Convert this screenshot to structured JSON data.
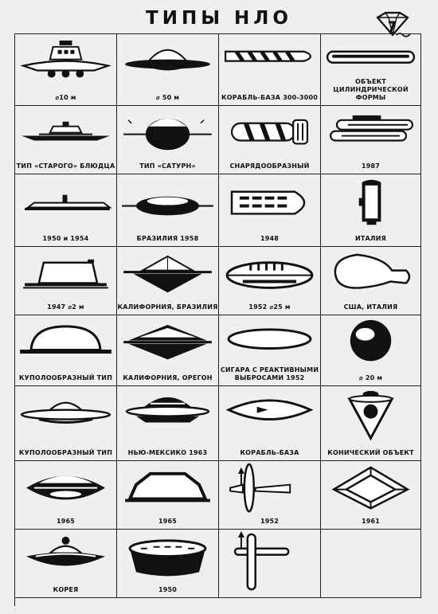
{
  "title": "ТИПЫ НЛО",
  "cells": [
    {
      "label": "⌀10 м",
      "icon": "saucer-cabin-icon"
    },
    {
      "label": "⌀ 50 м",
      "icon": "saucer-dome-icon"
    },
    {
      "label": "КОРАБЛЬ-БАЗА 300-3000",
      "icon": "cigar-segmented-icon"
    },
    {
      "label": "ОБЪЕКТ\nЦИЛИНДРИЧЕСКОЙ ФОРМЫ",
      "icon": "cylinder-icon"
    },
    {
      "label": "ТИП «СТАРОГО» БЛЮДЦА",
      "icon": "old-saucer-icon"
    },
    {
      "label": "ТИП «САТУРН»",
      "icon": "saturn-icon"
    },
    {
      "label": "СНАРЯДООБРАЗНЫЙ",
      "icon": "projectile-icon"
    },
    {
      "label": "1987",
      "icon": "double-cylinder-icon"
    },
    {
      "label": "1950 и 1954",
      "icon": "flat-plate-icon"
    },
    {
      "label": "БРАЗИЛИЯ 1958",
      "icon": "lens-ring-icon"
    },
    {
      "label": "1948",
      "icon": "boat-windows-icon"
    },
    {
      "label": "ИТАЛИЯ",
      "icon": "tower-icon"
    },
    {
      "label": "1947  ⌀2 м",
      "icon": "trapezoid-dome-icon"
    },
    {
      "label": "КАЛИФОРНИЯ, БРАЗИЛИЯ",
      "icon": "cone-ring-icon"
    },
    {
      "label": "1952  ⌀25 м",
      "icon": "lens-windows-icon"
    },
    {
      "label": "США, ИТАЛИЯ",
      "icon": "bulb-icon"
    },
    {
      "label": "КУПОЛООБРАЗНЫЙ ТИП",
      "icon": "dome-icon"
    },
    {
      "label": "КАЛИФОРНИЯ, ОРЕГОН",
      "icon": "double-cone-icon"
    },
    {
      "label": "СИГАРА С РЕАКТИВНЫМИ\nВЫБРОСАМИ    1952",
      "icon": "cigar-icon"
    },
    {
      "label": "⌀ 20 м",
      "icon": "sphere-icon"
    },
    {
      "label": "КУПОЛООБРАЗНЫЙ ТИП",
      "icon": "dome-saucer-icon"
    },
    {
      "label": "НЬЮ-МЕКСИКО 1963",
      "icon": "windowed-saucer-icon"
    },
    {
      "label": "КОРАБЛЬ-БАЗА",
      "icon": "lens-craft-icon"
    },
    {
      "label": "КОНИЧЕСКИЙ ОБЪЕКТ",
      "icon": "inverted-cone-icon"
    },
    {
      "label": "1965",
      "icon": "lens-saucer-icon"
    },
    {
      "label": "1965",
      "icon": "arch-icon"
    },
    {
      "label": "1952",
      "icon": "cross-wing-icon"
    },
    {
      "label": "1961",
      "icon": "diamond-frame-icon"
    },
    {
      "label": "КОРЕЯ",
      "icon": "korea-saucer-icon"
    },
    {
      "label": "1950",
      "icon": "drum-icon"
    },
    {
      "label": "",
      "icon": "cross-icon"
    },
    {
      "label": "",
      "icon": ""
    }
  ]
}
